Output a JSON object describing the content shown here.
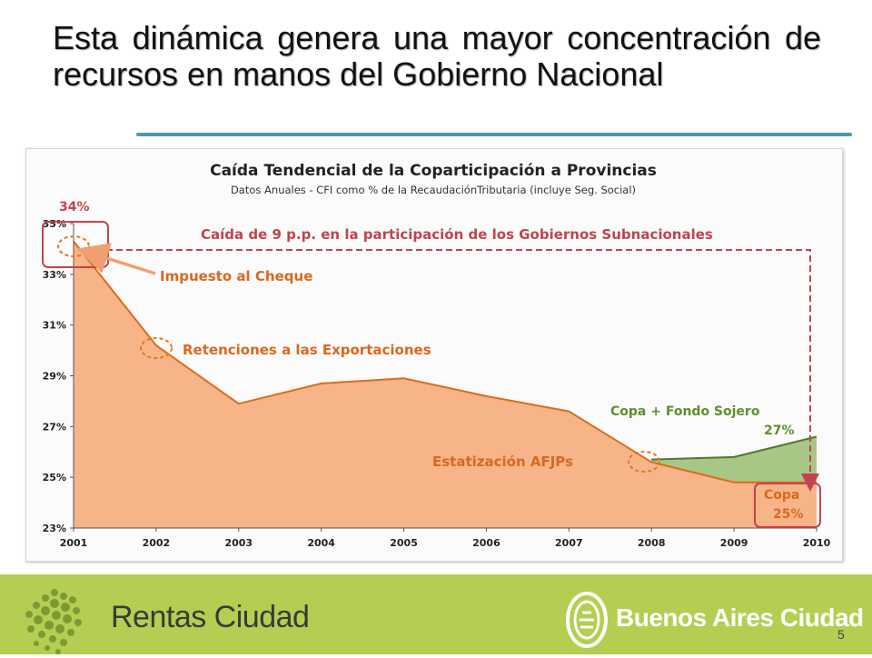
{
  "slide": {
    "title": "Esta dinámica genera una mayor concentración de recursos en manos del Gobierno Nacional",
    "page_number": "5"
  },
  "footer": {
    "left_brand": "Rentas Ciudad",
    "right_brand": "Buenos Aires Ciudad",
    "background": "#b4ce51"
  },
  "chart_data": {
    "type": "area",
    "title": "Caída Tendencial de la Coparticipación a Provincias",
    "subtitle": "Datos Anuales - CFI como % de la RecaudaciónTributaria  (incluye Seg. Social)",
    "x": [
      "2001",
      "2002",
      "2003",
      "2004",
      "2005",
      "2006",
      "2007",
      "2008",
      "2009",
      "2010"
    ],
    "ylim": [
      23,
      35
    ],
    "yticks": [
      23,
      25,
      27,
      29,
      31,
      33,
      35
    ],
    "ytick_labels": [
      "23%",
      "25%",
      "27%",
      "29%",
      "31%",
      "33%",
      "35%"
    ],
    "grid": false,
    "series": [
      {
        "name": "Copa",
        "values": [
          34.3,
          30.2,
          27.9,
          28.7,
          28.9,
          28.2,
          27.6,
          25.6,
          24.8,
          24.8
        ],
        "color": "#f7b488",
        "line_color": "#e06b1a"
      },
      {
        "name": "Copa + Fondo Sojero",
        "x": [
          "2008",
          "2009",
          "2010"
        ],
        "values": [
          25.7,
          25.8,
          26.6
        ],
        "color": "#a8c786",
        "line_color": "#4e7a2a"
      }
    ],
    "annotations": {
      "start_value": "34%",
      "drop_label": "Caída de 9 p.p. en la participación de los Gobiernos Subnacionales",
      "cheque": "Impuesto al Cheque",
      "retenciones": "Retenciones a las Exportaciones",
      "afjp": "Estatización AFJPs",
      "sojero_label": "Copa + Fondo Sojero",
      "sojero_value": "27%",
      "copa_label": "Copa",
      "copa_value": "25%"
    },
    "colors": {
      "annotation_red": "#c0444f",
      "annotation_orange": "#d9681f",
      "annotation_green": "#5e8f2e"
    }
  }
}
